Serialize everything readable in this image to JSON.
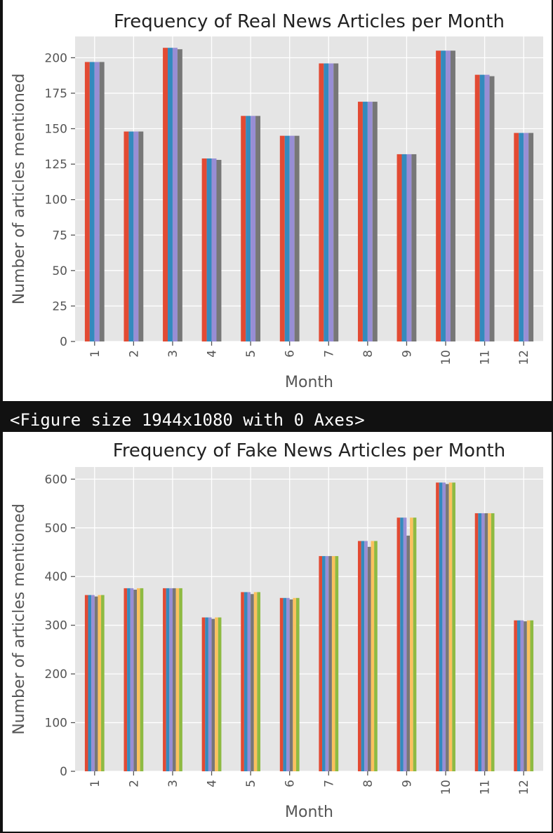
{
  "figure_output": {
    "text": "<Figure size 1944x1080 with 0 Axes>"
  },
  "colors": {
    "background": "#111111",
    "panel": "#ffffff",
    "plot_bg": "#e5e5e5",
    "grid": "#ffffff",
    "series": [
      "#e24a33",
      "#348abd",
      "#988ed5",
      "#777777",
      "#fbc15e",
      "#8eba42"
    ]
  },
  "chart_data": [
    {
      "type": "bar",
      "title": "Frequency of Real News Articles per Month",
      "xlabel": "Month",
      "ylabel": "Number of articles mentioned",
      "categories": [
        "1",
        "2",
        "3",
        "4",
        "5",
        "6",
        "7",
        "8",
        "9",
        "10",
        "11",
        "12"
      ],
      "ylim": [
        0,
        215
      ],
      "yticks": [
        0,
        25,
        50,
        75,
        100,
        125,
        150,
        175,
        200
      ],
      "grid": true,
      "legend": "none",
      "series": [
        {
          "name": "series 1",
          "values": [
            197,
            148,
            207,
            129,
            159,
            145,
            196,
            169,
            132,
            205,
            188,
            147
          ]
        },
        {
          "name": "series 2",
          "values": [
            197,
            148,
            207,
            129,
            159,
            145,
            196,
            169,
            132,
            205,
            188,
            147
          ]
        },
        {
          "name": "series 3",
          "values": [
            197,
            148,
            207,
            129,
            159,
            145,
            196,
            169,
            132,
            205,
            188,
            147
          ]
        },
        {
          "name": "series 4",
          "values": [
            197,
            148,
            206,
            128,
            159,
            145,
            196,
            169,
            132,
            205,
            187,
            147
          ]
        }
      ]
    },
    {
      "type": "bar",
      "title": "Frequency of Fake News Articles per Month",
      "xlabel": "Month",
      "ylabel": "Number of articles mentioned",
      "categories": [
        "1",
        "2",
        "3",
        "4",
        "5",
        "6",
        "7",
        "8",
        "9",
        "10",
        "11",
        "12"
      ],
      "ylim": [
        0,
        625
      ],
      "yticks": [
        0,
        100,
        200,
        300,
        400,
        500,
        600
      ],
      "grid": true,
      "legend": "none",
      "series": [
        {
          "name": "series 1",
          "values": [
            362,
            376,
            376,
            316,
            368,
            356,
            442,
            473,
            521,
            593,
            530,
            310
          ]
        },
        {
          "name": "series 2",
          "values": [
            362,
            376,
            376,
            316,
            368,
            356,
            442,
            473,
            521,
            593,
            530,
            310
          ]
        },
        {
          "name": "series 3",
          "values": [
            362,
            376,
            376,
            316,
            368,
            356,
            442,
            473,
            521,
            593,
            530,
            310
          ]
        },
        {
          "name": "series 4",
          "values": [
            359,
            373,
            376,
            313,
            364,
            353,
            442,
            461,
            484,
            590,
            530,
            308
          ]
        },
        {
          "name": "series 5",
          "values": [
            362,
            376,
            376,
            316,
            368,
            356,
            442,
            473,
            521,
            593,
            530,
            310
          ]
        },
        {
          "name": "series 6",
          "values": [
            362,
            376,
            376,
            316,
            368,
            356,
            442,
            473,
            521,
            593,
            530,
            310
          ]
        }
      ]
    }
  ]
}
